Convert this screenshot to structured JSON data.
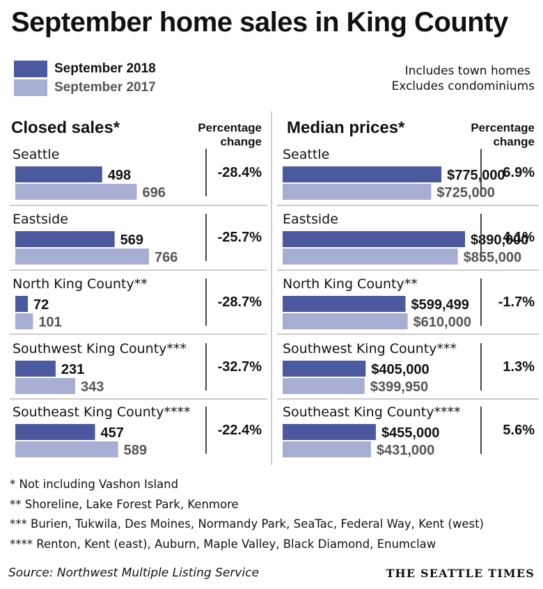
{
  "title": "September home sales in King County",
  "legend": [
    {
      "label": "September 2018",
      "color": "#4b5aa0",
      "text_color": "#111111"
    },
    {
      "label": "September 2017",
      "color": "#a8aed3",
      "text_color": "#555555"
    }
  ],
  "notes": [
    "Includes town homes",
    "Excludes condominiums"
  ],
  "footnotes": [
    "* Not including Vashon Island",
    "**  Shoreline, Lake Forest Park, Kenmore",
    "*** Burien, Tukwila, Des Moines, Normandy Park, SeaTac, Federal Way, Kent (west)",
    "**** Renton, Kent (east), Auburn, Maple Valley, Black Diamond, Enumclaw"
  ],
  "source": "Source: Northwest Multiple Listing Service",
  "brand": "THE SEATTLE TIMES",
  "chart_data": [
    {
      "type": "bar",
      "title": "Closed sales*",
      "pct_header": [
        "Percentage",
        "change"
      ],
      "categories": [
        "Seattle",
        "Eastside",
        "North King County**",
        "Southwest King County***",
        "Southeast King County****"
      ],
      "series": [
        {
          "name": "September 2018",
          "values": [
            498,
            569,
            72,
            231,
            457
          ],
          "labels": [
            "498",
            "569",
            "72",
            "231",
            "457"
          ]
        },
        {
          "name": "September 2017",
          "values": [
            696,
            766,
            101,
            343,
            589
          ],
          "labels": [
            "696",
            "766",
            "101",
            "343",
            "589"
          ]
        }
      ],
      "pct_change": [
        "-28.4%",
        "-25.7%",
        "-28.7%",
        "-32.7%",
        "-22.4%"
      ],
      "scale_max": 766
    },
    {
      "type": "bar",
      "title": "Median prices*",
      "pct_header": [
        "Percentage",
        "change"
      ],
      "categories": [
        "Seattle",
        "Eastside",
        "North King County**",
        "Southwest King County***",
        "Southeast King County****"
      ],
      "series": [
        {
          "name": "September 2018",
          "values": [
            775000,
            890000,
            599499,
            405000,
            455000
          ],
          "labels": [
            "$775,000",
            "$890,000",
            "$599,499",
            "$405,000",
            "$455,000"
          ]
        },
        {
          "name": "September 2017",
          "values": [
            725000,
            855000,
            610000,
            399950,
            431000
          ],
          "labels": [
            "$725,000",
            "$855,000",
            "$610,000",
            "$399,950",
            "$431,000"
          ]
        }
      ],
      "pct_change": [
        "6.9%",
        "4.1%",
        "-1.7%",
        "1.3%",
        "5.6%"
      ],
      "scale_max": 890000
    }
  ]
}
